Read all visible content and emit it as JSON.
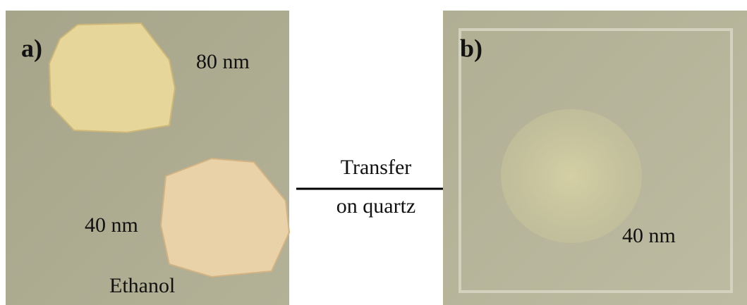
{
  "panel_a": {
    "label": "a)",
    "film_top_thickness": "80 nm",
    "film_bottom_thickness": "40 nm",
    "medium": "Ethanol"
  },
  "arrow": {
    "line1": "Transfer",
    "line2": "on quartz"
  },
  "panel_b": {
    "label": "b)",
    "film_thickness": "40 nm"
  }
}
